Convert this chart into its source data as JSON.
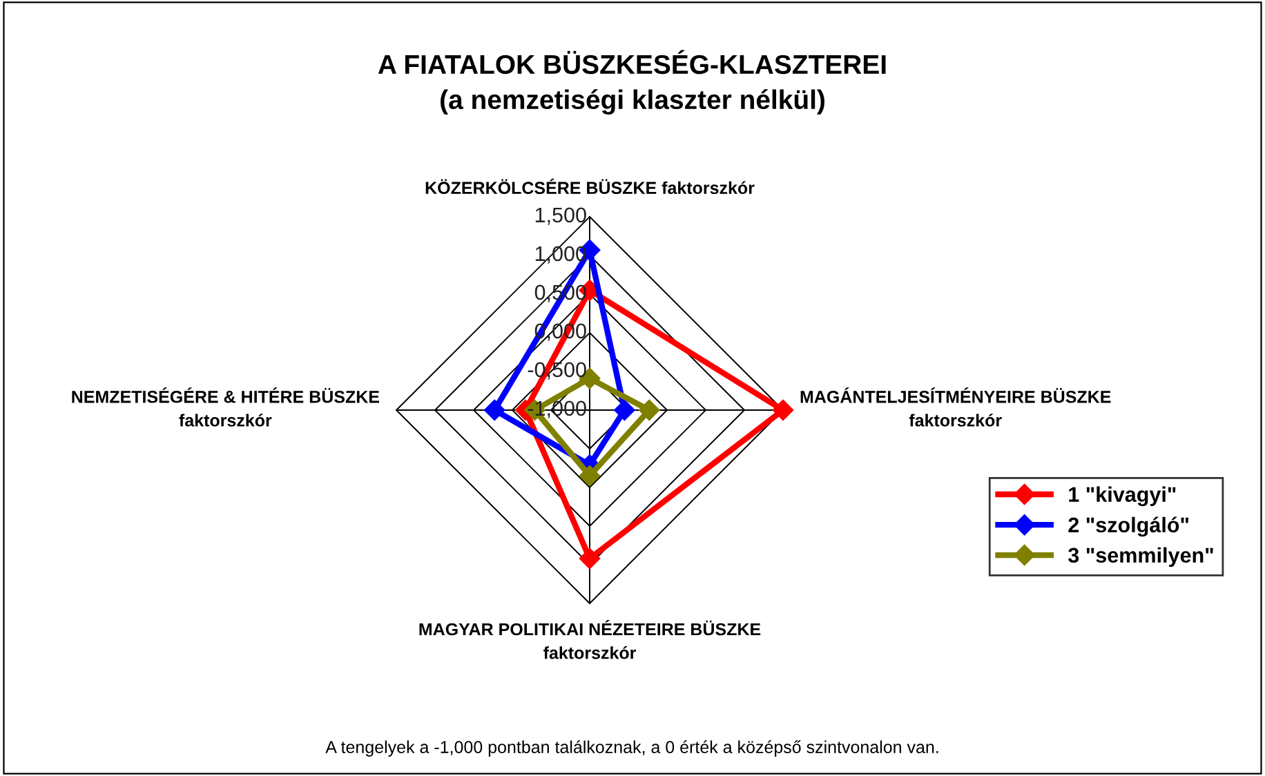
{
  "chart_data": {
    "type": "radar",
    "title": "A FIATALOK BÜSZKESÉG-KLASZTEREI\n(a nemzetiségi klaszter nélkül)",
    "categories": [
      "KÖZERKÖLCSÉRE BÜSZKE faktorszkór",
      "MAGÁNTELJESÍTMÉNYEIRE BÜSZKE\nfaktorszkór",
      "MAGYAR POLITIKAI NÉZETEIRE BÜSZKE\nfaktorszkór",
      "NEMZETISÉGÉRE & HITÉRE BÜSZKE\nfaktorszkór"
    ],
    "series": [
      {
        "name": "1 \"kivagyi\"",
        "color": "#ff0000",
        "values": [
          0.55,
          1.5,
          0.92,
          -0.17
        ]
      },
      {
        "name": "2 \"szolgáló\"",
        "color": "#0000ff",
        "values": [
          1.07,
          -0.55,
          -0.29,
          0.23
        ]
      },
      {
        "name": "3 \"semmilyen\"",
        "color": "#808000",
        "values": [
          -0.59,
          -0.23,
          -0.15,
          -0.29
        ]
      }
    ],
    "ylim": [
      -1,
      1.5
    ],
    "yticks": [
      {
        "value": -1,
        "label": "-1,000"
      },
      {
        "value": -0.5,
        "label": "-0,500"
      },
      {
        "value": 0,
        "label": "0,000"
      },
      {
        "value": 0.5,
        "label": "0,500"
      },
      {
        "value": 1,
        "label": "1,000"
      },
      {
        "value": 1.5,
        "label": "1,500"
      }
    ],
    "marker": "diamond",
    "legend": "bottom right",
    "annotations": [
      "A tengelyek a -1,000 pontban találkoznak, a 0 érték a középső szintvonalon van."
    ]
  }
}
